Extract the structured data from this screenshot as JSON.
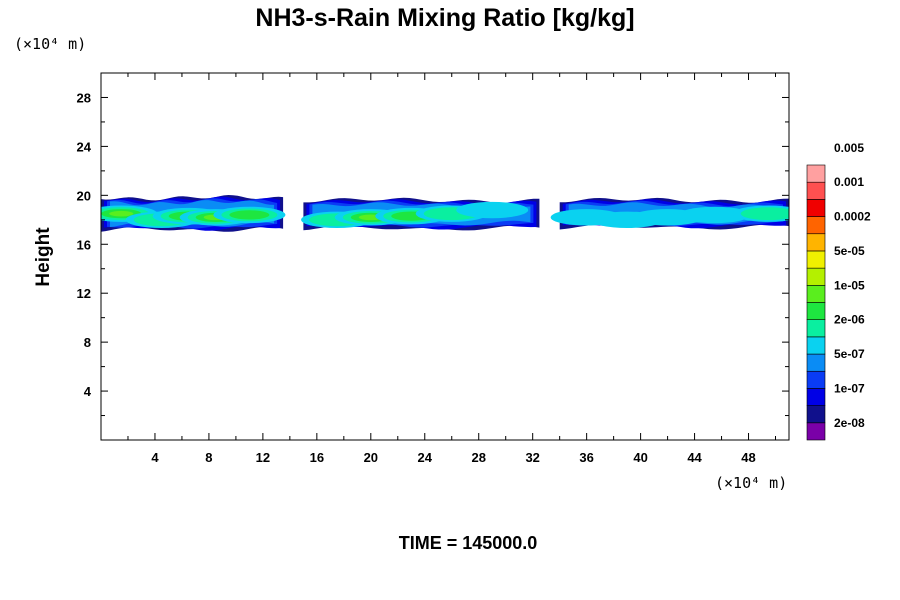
{
  "chart_data": {
    "type": "heatmap",
    "title": "NH3-s-Rain Mixing Ratio [kg/kg]",
    "xlabel": "",
    "ylabel": "Height",
    "x_unit": "(×10⁴ m)",
    "y_unit": "(×10⁴ m)",
    "xlim": [
      0,
      51
    ],
    "ylim": [
      0,
      30
    ],
    "x_ticks": [
      4,
      8,
      12,
      16,
      20,
      24,
      28,
      32,
      36,
      40,
      44,
      48
    ],
    "y_ticks": [
      4,
      8,
      12,
      16,
      20,
      24,
      28
    ],
    "time_label": "TIME = 145000.0",
    "colorbar": {
      "colors": [
        "#7a00a8",
        "#10108c",
        "#0000e6",
        "#0a3cf5",
        "#0a8cf5",
        "#0ad2f0",
        "#0aefa0",
        "#1ee640",
        "#5aee1e",
        "#b4f000",
        "#f0f000",
        "#ffb400",
        "#ff6400",
        "#f00000",
        "#ff5050",
        "#ffa0a0"
      ],
      "labels": [
        "2e-08",
        "1e-07",
        "5e-07",
        "2e-06",
        "1e-05",
        "5e-05",
        "0.0002",
        "0.001",
        "0.005"
      ]
    },
    "bands": [
      {
        "x0": 0.0,
        "x1": 13.5,
        "y_bottom": 17.2,
        "y_top": 19.8,
        "core_level": 8
      },
      {
        "x0": 15.0,
        "x1": 32.5,
        "y_bottom": 17.3,
        "y_top": 19.6,
        "core_level": 8
      },
      {
        "x0": 34.0,
        "x1": 51.0,
        "y_bottom": 17.4,
        "y_top": 19.6,
        "core_level": 5
      }
    ],
    "cores": [
      {
        "x": 1.5,
        "y": 18.5,
        "level": 8
      },
      {
        "x": 4.5,
        "y": 18.0,
        "level": 6
      },
      {
        "x": 6.5,
        "y": 18.3,
        "level": 7
      },
      {
        "x": 8.5,
        "y": 18.2,
        "level": 8
      },
      {
        "x": 11.0,
        "y": 18.4,
        "level": 7
      },
      {
        "x": 17.5,
        "y": 18.0,
        "level": 6
      },
      {
        "x": 20.0,
        "y": 18.2,
        "level": 8
      },
      {
        "x": 23.0,
        "y": 18.3,
        "level": 7
      },
      {
        "x": 26.0,
        "y": 18.5,
        "level": 6
      },
      {
        "x": 29.0,
        "y": 18.8,
        "level": 5
      },
      {
        "x": 36.0,
        "y": 18.2,
        "level": 5
      },
      {
        "x": 39.0,
        "y": 18.0,
        "level": 5
      },
      {
        "x": 42.0,
        "y": 18.2,
        "level": 5
      },
      {
        "x": 45.5,
        "y": 18.4,
        "level": 5
      },
      {
        "x": 49.5,
        "y": 18.5,
        "level": 6
      }
    ]
  }
}
